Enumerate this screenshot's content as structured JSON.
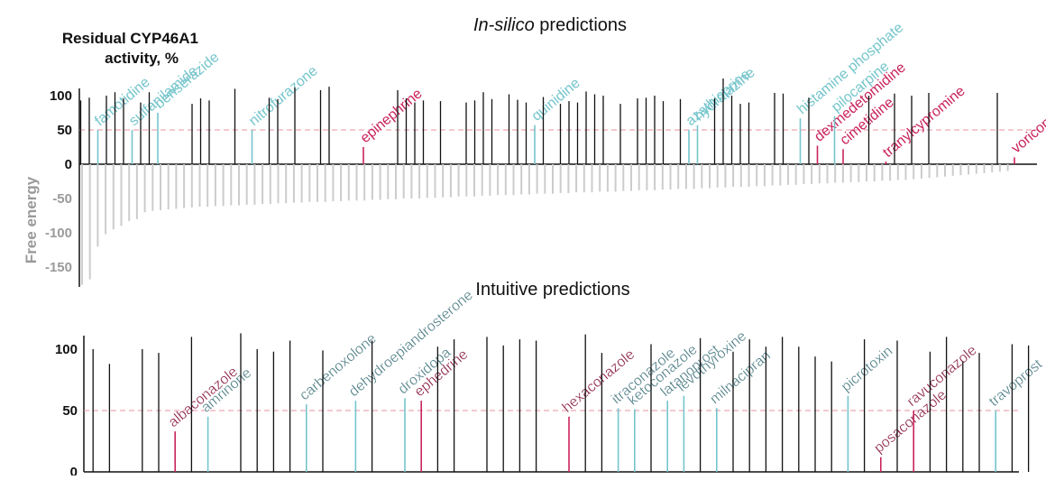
{
  "colors": {
    "bar": "#111111",
    "energy": "#cccccc",
    "active": "#75c5cc",
    "inactive": "#c9245d",
    "active_dark": "#4b7c84",
    "inactive_dark": "#8a1f45",
    "threshold": "#e8909f"
  },
  "chart_data": [
    {
      "type": "bar",
      "title_italic": "In-silico",
      "title_rest": " predictions",
      "ylabel_line1": "Residual CYP46A1",
      "ylabel_line2": "activity, %",
      "y2label": "Free energy",
      "yticks": [
        100,
        50,
        0,
        -50,
        -100,
        -150
      ],
      "ylim": [
        -180,
        115
      ],
      "threshold": 50,
      "activity": [
        [
          1,
          "b",
          93
        ],
        [
          2,
          "b",
          97
        ],
        [
          3,
          "a",
          50,
          "famotidine"
        ],
        [
          4,
          "b",
          100
        ],
        [
          5,
          "b",
          105
        ],
        [
          6,
          "b",
          96
        ],
        [
          7,
          "a",
          50,
          "sulfanilamide"
        ],
        [
          8,
          "b",
          90
        ],
        [
          9,
          "b",
          105
        ],
        [
          10,
          "a",
          75,
          "benserazide"
        ],
        [
          14,
          "b",
          88
        ],
        [
          15,
          "b",
          96
        ],
        [
          16,
          "b",
          93
        ],
        [
          19,
          "b",
          110
        ],
        [
          21,
          "a",
          50,
          "nitrofurazone"
        ],
        [
          23,
          "b",
          97
        ],
        [
          24,
          "b",
          95
        ],
        [
          26,
          "b",
          112
        ],
        [
          29,
          "b",
          108
        ],
        [
          30,
          "b",
          113
        ],
        [
          34,
          "i",
          25,
          "epinephrine"
        ],
        [
          38,
          "b",
          108
        ],
        [
          39,
          "b",
          96
        ],
        [
          40,
          "b",
          90
        ],
        [
          41,
          "b",
          93
        ],
        [
          43,
          "b",
          92
        ],
        [
          46,
          "b",
          90
        ],
        [
          47,
          "b",
          93
        ],
        [
          48,
          "b",
          105
        ],
        [
          49,
          "b",
          95
        ],
        [
          51,
          "b",
          102
        ],
        [
          52,
          "b",
          94
        ],
        [
          53,
          "b",
          90
        ],
        [
          54,
          "a",
          57,
          "quinidine"
        ],
        [
          55,
          "b",
          98
        ],
        [
          57,
          "b",
          88
        ],
        [
          58,
          "b",
          92
        ],
        [
          59,
          "b",
          90
        ],
        [
          60,
          "b",
          106
        ],
        [
          61,
          "b",
          102
        ],
        [
          62,
          "b",
          100
        ],
        [
          64,
          "b",
          88
        ],
        [
          66,
          "b",
          96
        ],
        [
          67,
          "b",
          97
        ],
        [
          68,
          "b",
          100
        ],
        [
          69,
          "b",
          92
        ],
        [
          71,
          "b",
          95
        ],
        [
          72,
          "a",
          50,
          "azathioprine"
        ],
        [
          73,
          "a",
          57,
          "hydralazine"
        ],
        [
          75,
          "b",
          96
        ],
        [
          76,
          "b",
          125
        ],
        [
          77,
          "b",
          100
        ],
        [
          78,
          "b",
          88
        ],
        [
          79,
          "b",
          90
        ],
        [
          82,
          "b",
          104
        ],
        [
          83,
          "b",
          103
        ],
        [
          85,
          "a",
          67,
          "histamine phosphate"
        ],
        [
          86,
          "b",
          97
        ],
        [
          87,
          "i",
          27,
          "dexmedetomidine"
        ],
        [
          89,
          "a",
          70,
          "pilocarpine"
        ],
        [
          90,
          "i",
          22,
          "cimetidine"
        ],
        [
          93,
          "b",
          100
        ],
        [
          95,
          "i",
          4,
          "tranylcypromine"
        ],
        [
          96,
          "b",
          103
        ],
        [
          98,
          "b",
          100
        ],
        [
          100,
          "b",
          104
        ],
        [
          108,
          "b",
          104
        ],
        [
          110,
          "i",
          10,
          "voriconazole"
        ]
      ],
      "free_energy": [
        -176,
        -168,
        -120,
        -102,
        -95,
        -90,
        -83,
        -80,
        -70,
        -68,
        -67,
        -66,
        -65,
        -64,
        -63,
        -62,
        -62,
        -61,
        -61,
        -60,
        -60,
        -59,
        -59,
        -58,
        -58,
        -57,
        -57,
        -56,
        -56,
        -55,
        -55,
        -55,
        -54,
        -54,
        -53,
        -53,
        -53,
        -52,
        -52,
        -51,
        -51,
        -50,
        -50,
        -50,
        -49,
        -49,
        -48,
        -48,
        -47,
        -47,
        -47,
        -46,
        -46,
        -45,
        -45,
        -45,
        -44,
        -44,
        -43,
        -43,
        -43,
        -42,
        -42,
        -41,
        -41,
        -41,
        -40,
        -40,
        -40,
        -39,
        -39,
        -38,
        -38,
        -38,
        -37,
        -37,
        -36,
        -36,
        -36,
        -35,
        -35,
        -34,
        -34,
        -33,
        -33,
        -33,
        -32,
        -32,
        -31,
        -31,
        -30,
        -30,
        -29,
        -29,
        -28,
        -28,
        -27,
        -27,
        -26,
        -26,
        -25,
        -25,
        -24,
        -24,
        -23,
        -23,
        -22,
        -21,
        -20,
        -19,
        -18,
        -17,
        -16,
        -15,
        -14,
        -13,
        -12,
        -11,
        -10
      ]
    },
    {
      "type": "bar",
      "title": "Intuitive predictions",
      "yticks": [
        100,
        50,
        0
      ],
      "ylim": [
        0,
        115
      ],
      "threshold": 50,
      "activity": [
        [
          1,
          "b",
          100
        ],
        [
          2,
          "b",
          88
        ],
        [
          4,
          "b",
          100
        ],
        [
          5,
          "b",
          97
        ],
        [
          6,
          "i",
          33,
          "albaconazole"
        ],
        [
          7,
          "b",
          110
        ],
        [
          8,
          "a",
          45,
          "amrinone"
        ],
        [
          10,
          "b",
          113
        ],
        [
          11,
          "b",
          100
        ],
        [
          12,
          "b",
          98
        ],
        [
          13,
          "b",
          107
        ],
        [
          14,
          "a",
          55,
          "carbenoxolone"
        ],
        [
          15,
          "b",
          99
        ],
        [
          17,
          "a",
          58,
          "dehydroepiandrosterone"
        ],
        [
          18,
          "b",
          107
        ],
        [
          20,
          "a",
          60,
          "droxidopa"
        ],
        [
          21,
          "i",
          58,
          "ephedrine"
        ],
        [
          22,
          "b",
          102
        ],
        [
          23,
          "b",
          108
        ],
        [
          25,
          "b",
          110
        ],
        [
          26,
          "b",
          103
        ],
        [
          27,
          "b",
          108
        ],
        [
          28,
          "b",
          107
        ],
        [
          30,
          "i",
          45,
          "hexaconazole"
        ],
        [
          31,
          "b",
          112
        ],
        [
          32,
          "b",
          97
        ],
        [
          33,
          "a",
          52,
          "itraconazole"
        ],
        [
          34,
          "a",
          51,
          "ketoconazole"
        ],
        [
          35,
          "b",
          104
        ],
        [
          36,
          "a",
          58,
          "latanoprost"
        ],
        [
          37,
          "a",
          62,
          "levothyroxine"
        ],
        [
          38,
          "b",
          109
        ],
        [
          39,
          "a",
          52,
          "milnacipran"
        ],
        [
          40,
          "b",
          98
        ],
        [
          41,
          "b",
          108
        ],
        [
          42,
          "b",
          102
        ],
        [
          43,
          "b",
          110
        ],
        [
          44,
          "b",
          102
        ],
        [
          45,
          "b",
          94
        ],
        [
          46,
          "b",
          90
        ],
        [
          47,
          "a",
          62,
          "picrotoxin"
        ],
        [
          48,
          "b",
          108
        ],
        [
          49,
          "i",
          12,
          "posaconazole"
        ],
        [
          50,
          "b",
          107
        ],
        [
          51,
          "i",
          50,
          "ravuconazole"
        ],
        [
          52,
          "b",
          98
        ],
        [
          53,
          "b",
          110
        ],
        [
          54,
          "b",
          90
        ],
        [
          55,
          "b",
          97
        ],
        [
          56,
          "a",
          50,
          "travoprost"
        ],
        [
          57,
          "b",
          104
        ],
        [
          58,
          "b",
          103
        ]
      ]
    }
  ]
}
